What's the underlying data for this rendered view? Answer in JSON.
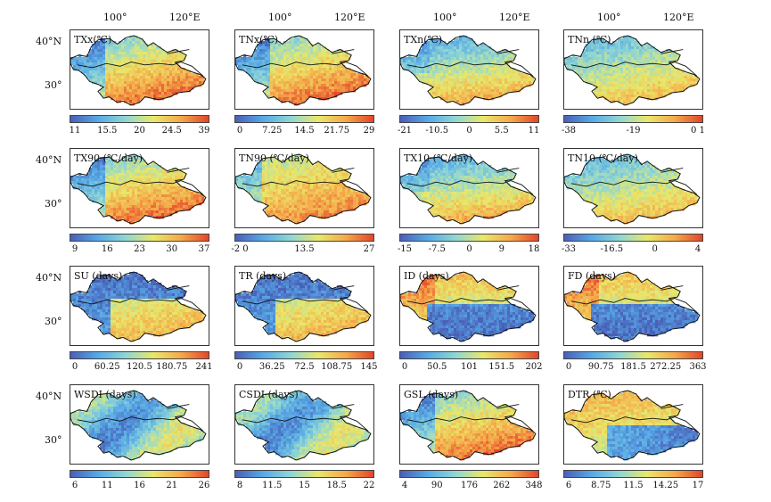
{
  "axes": {
    "lon_labels": [
      "100°",
      "120°E"
    ],
    "lat_labels": [
      "40°N",
      "30°"
    ]
  },
  "colormaps": {
    "std": [
      "#4a5fb8",
      "#57a9e6",
      "#8fd6d4",
      "#e8e86a",
      "#f5a94a",
      "#e3452a"
    ]
  },
  "panels": [
    {
      "title": "TXx(℃)",
      "ticks": [
        "11",
        "15.5",
        "20",
        "24.5",
        "39"
      ],
      "pattern": "warm_south"
    },
    {
      "title": "TNx(℃)",
      "ticks": [
        "0",
        "7.25",
        "14.5",
        "21.75",
        "29"
      ],
      "pattern": "warm_south"
    },
    {
      "title": "TXn(℃)",
      "ticks": [
        "-21",
        "-10.5",
        "0",
        "5.5",
        "11"
      ],
      "pattern": "cold_north"
    },
    {
      "title": "TNn (℃)",
      "ticks": [
        "-38",
        "-19",
        "0 1"
      ],
      "pattern": "cold_north_mild"
    },
    {
      "title": "TX90 (℃/day)",
      "ticks": [
        "9",
        "16",
        "23",
        "30",
        "37"
      ],
      "pattern": "warm_south"
    },
    {
      "title": "TN90 (℃/day)",
      "ticks": [
        "-2 0",
        "13.5",
        "27"
      ],
      "pattern": "warm_all"
    },
    {
      "title": "TX10 (℃/day)",
      "ticks": [
        "-15",
        "-7.5",
        "0",
        "9",
        "18"
      ],
      "pattern": "cold_north"
    },
    {
      "title": "TN10 (℃/day)",
      "ticks": [
        "-33",
        "-16.5",
        "0",
        "4"
      ],
      "pattern": "cold_north_mild"
    },
    {
      "title": "SU (days)",
      "ticks": [
        "0",
        "60.25",
        "120.5",
        "180.75",
        "241"
      ],
      "pattern": "west_low"
    },
    {
      "title": "TR (days)",
      "ticks": [
        "0",
        "36.25",
        "72.5",
        "108.75",
        "145"
      ],
      "pattern": "west_low"
    },
    {
      "title": "ID (days)",
      "ticks": [
        "0",
        "50.5",
        "101",
        "151.5",
        "202"
      ],
      "pattern": "north_high"
    },
    {
      "title": "FD (days)",
      "ticks": [
        "0",
        "90.75",
        "181.5",
        "272.25",
        "363"
      ],
      "pattern": "north_high"
    },
    {
      "title": "WSDI (days)",
      "ticks": [
        "6",
        "11",
        "16",
        "21",
        "26"
      ],
      "pattern": "mixed_mid"
    },
    {
      "title": "CSDI (days)",
      "ticks": [
        "8",
        "11.5",
        "15",
        "18.5",
        "22"
      ],
      "pattern": "mixed_mid"
    },
    {
      "title": "GSL (days)",
      "ticks": [
        "4",
        "90",
        "176",
        "262",
        "348"
      ],
      "pattern": "warm_south"
    },
    {
      "title": "DTR (℃)",
      "ticks": [
        "6",
        "8.75",
        "11.5",
        "14.25",
        "17"
      ],
      "pattern": "dtr"
    }
  ]
}
